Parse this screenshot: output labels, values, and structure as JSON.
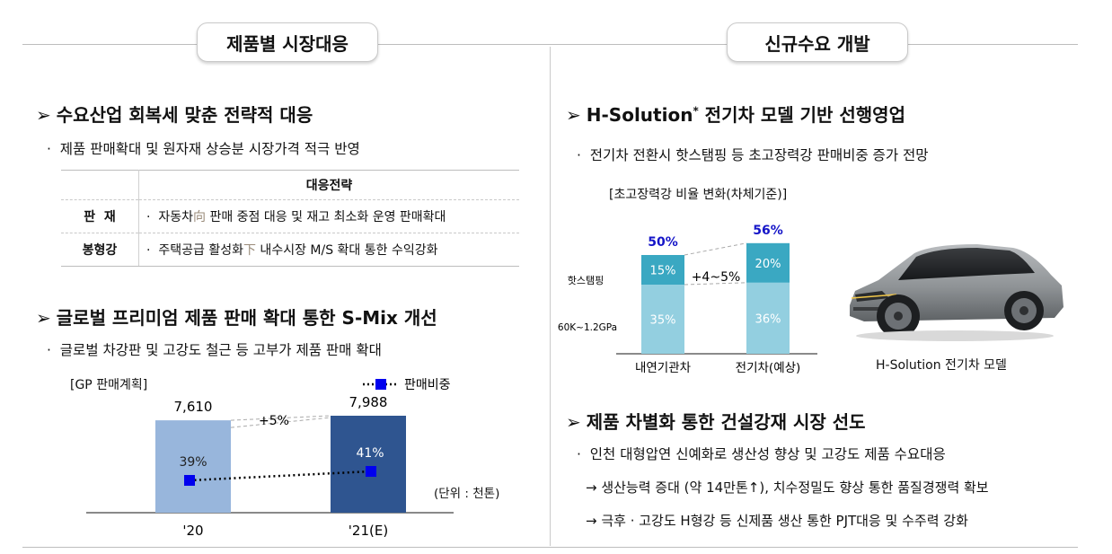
{
  "left": {
    "section_title": "제품별 시장대응",
    "heading1": "수요산업 회복세 맞춘 전략적 대응",
    "bullet1": "제품 판매확대 및 원자재 상승분 시장가격 적극 반영",
    "table": {
      "header": "대응전략",
      "rows": [
        {
          "label": "판  재",
          "pre": "자동차",
          "hl": "向",
          "post": " 판매 중점 대응 및 재고 최소화 운영 판매확대"
        },
        {
          "label": "봉형강",
          "pre": "주택공급 활성화",
          "hl": "下",
          "post": " 내수시장 M/S 확대 통한 수익강화"
        }
      ]
    },
    "heading2": "글로벌 프리미엄 제품 판매 확대 통한 S-Mix 개선",
    "bullet2": "글로벌 차강판 및 고강도 철근 등 고부가 제품 판매 확대",
    "chart_label": "[GP 판매계획]",
    "unit": "(단위 : 천톤)"
  },
  "right": {
    "section_title": "신규수요 개발",
    "heading1": "H-Solution",
    "heading1_sup": "*",
    "heading1_rest": " 전기차 모델 기반 선행영업",
    "bullet1": "전기차 전환시 핫스탬핑 등 초고장력강 판매비중 증가 전망",
    "chart_label": "[초고장력강 비율 변화(차체기준)]",
    "car_caption": "H-Solution 전기차 모델",
    "heading2": "제품 차별화 통한 건설강재 시장 선도",
    "bullet2": "인천 대형압연 신예화로 생산성 향상 및 고강도 제품 수요대응",
    "sub1": "→ 생산능력 증대 (약 14만톤↑), 치수정밀도 향상 통한 품질경쟁력 확보",
    "sub2": "→ 극후 · 고강도 H형강 등 신제품 생산 통한 PJT대응 및 수주력 강화"
  },
  "chart_data": [
    {
      "type": "bar",
      "categories": [
        "'20",
        "'21(E)"
      ],
      "values": [
        7610,
        7988
      ],
      "value_labels": [
        "7,610",
        "7,988"
      ],
      "growth_label": "+5%",
      "line_series": {
        "name": "판매비중",
        "values": [
          39,
          41
        ],
        "labels": [
          "39%",
          "41%"
        ]
      },
      "ylim": [
        0,
        8500
      ],
      "colors": {
        "bar1": "#98b6dc",
        "bar2": "#2f5590",
        "line": "#0000ee"
      }
    },
    {
      "type": "bar",
      "stacked": true,
      "categories": [
        "내연기관차",
        "전기차(예상)"
      ],
      "series": [
        {
          "name": "60K~1.2GPa",
          "values": [
            35,
            36
          ],
          "labels": [
            "35%",
            "36%"
          ]
        },
        {
          "name": "핫스탬핑",
          "values": [
            15,
            20
          ],
          "labels": [
            "15%",
            "20%"
          ]
        }
      ],
      "totals": [
        50,
        56
      ],
      "total_labels": [
        "50%",
        "56%"
      ],
      "delta_label": "+4~5%",
      "ylim": [
        0,
        60
      ],
      "colors": {
        "bottom": "#93cfe0",
        "top": "#3aa8c2",
        "total_text": "#1515c8"
      }
    }
  ]
}
